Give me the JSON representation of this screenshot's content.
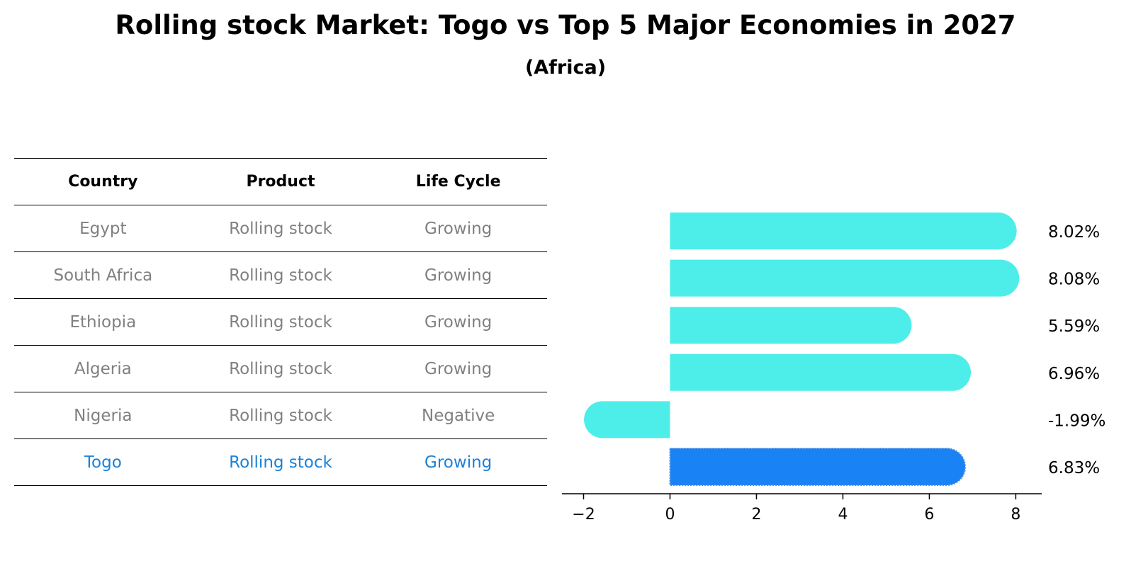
{
  "title": "Rolling stock Market: Togo vs Top 5 Major Economies in 2027",
  "subtitle": "(Africa)",
  "table": {
    "headers": [
      "Country",
      "Product",
      "Life Cycle"
    ],
    "rows": [
      [
        "Egypt",
        "Rolling stock",
        "Growing"
      ],
      [
        "South Africa",
        "Rolling stock",
        "Growing"
      ],
      [
        "Ethiopia",
        "Rolling stock",
        "Growing"
      ],
      [
        "Algeria",
        "Rolling stock",
        "Growing"
      ],
      [
        "Nigeria",
        "Rolling stock",
        "Negative"
      ],
      [
        "Togo",
        "Rolling stock",
        "Growing"
      ]
    ],
    "highlight_row": 5
  },
  "chart_data": {
    "type": "bar",
    "orientation": "horizontal",
    "categories": [
      "Egypt",
      "South Africa",
      "Ethiopia",
      "Algeria",
      "Nigeria",
      "Togo"
    ],
    "values": [
      8.02,
      8.08,
      5.59,
      6.96,
      -1.99,
      6.83
    ],
    "data_labels": [
      "8.02%",
      "8.08%",
      "5.59%",
      "6.96%",
      "-1.99%",
      "6.83%"
    ],
    "xlim": [
      -2.5,
      8.6
    ],
    "xticks": [
      -2,
      0,
      2,
      4,
      6,
      8
    ],
    "xtick_labels": [
      "−2",
      "0",
      "2",
      "4",
      "6",
      "8"
    ],
    "grid": false,
    "highlight_index": 5,
    "colors": {
      "default": "#4deeea",
      "highlight": "#1982f5"
    }
  }
}
